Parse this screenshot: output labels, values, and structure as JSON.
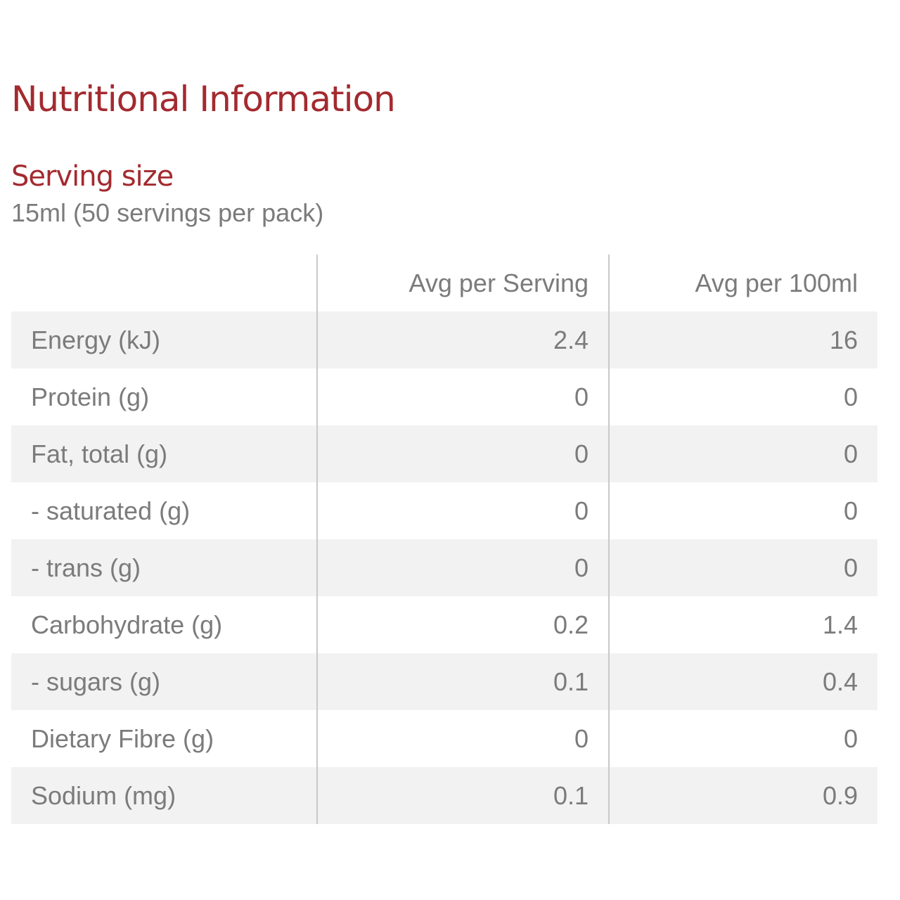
{
  "title": "Nutritional Information",
  "serving": {
    "label": "Serving size",
    "value": "15ml (50 servings per pack)"
  },
  "table": {
    "headers": [
      "",
      "Avg per Serving",
      "Avg per 100ml"
    ],
    "rows": [
      {
        "name": "Energy (kJ)",
        "per_serving": "2.4",
        "per_100ml": "16"
      },
      {
        "name": "Protein (g)",
        "per_serving": "0",
        "per_100ml": "0"
      },
      {
        "name": "Fat, total (g)",
        "per_serving": "0",
        "per_100ml": "0"
      },
      {
        "name": "- saturated (g)",
        "per_serving": "0",
        "per_100ml": "0"
      },
      {
        "name": "- trans (g)",
        "per_serving": "0",
        "per_100ml": "0"
      },
      {
        "name": "Carbohydrate (g)",
        "per_serving": "0.2",
        "per_100ml": "1.4"
      },
      {
        "name": "- sugars (g)",
        "per_serving": "0.1",
        "per_100ml": "0.4"
      },
      {
        "name": "Dietary Fibre (g)",
        "per_serving": "0",
        "per_100ml": "0"
      },
      {
        "name": "Sodium (mg)",
        "per_serving": "0.1",
        "per_100ml": "0.9"
      }
    ]
  },
  "colors": {
    "heading": "#a32a2f",
    "text": "#7b7b7b",
    "row_stripe": "#f2f2f2",
    "divider": "#c9c9c9"
  }
}
